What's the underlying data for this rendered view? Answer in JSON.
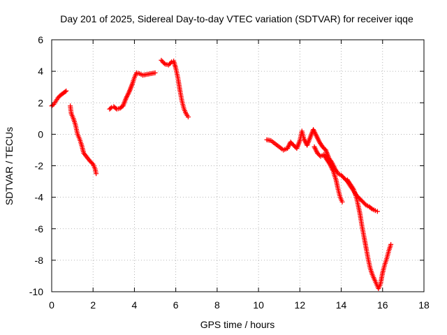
{
  "chart_data": {
    "type": "scatter",
    "title": "Day 201 of 2025, Sidereal Day-to-day VTEC variation (SDTVAR) for receiver iqqe",
    "xlabel": "GPS time / hours",
    "ylabel": "SDTVAR / TECUs",
    "xlim": [
      0,
      18
    ],
    "ylim": [
      -10,
      6
    ],
    "xticks": [
      "0",
      "2",
      "4",
      "6",
      "8",
      "10",
      "12",
      "14",
      "16",
      "18"
    ],
    "yticks": [
      "-10",
      "-8",
      "-6",
      "-4",
      "-2",
      "0",
      "2",
      "4",
      "6"
    ],
    "grid": true,
    "marker": "plus",
    "color": "#ff0000",
    "series": [
      {
        "name": "SDTVAR",
        "segments": [
          [
            [
              0.0,
              1.8
            ],
            [
              0.1,
              1.9
            ],
            [
              0.2,
              2.1
            ],
            [
              0.3,
              2.3
            ],
            [
              0.4,
              2.45
            ],
            [
              0.5,
              2.55
            ],
            [
              0.6,
              2.65
            ],
            [
              0.7,
              2.75
            ]
          ],
          [
            [
              0.9,
              1.8
            ],
            [
              0.95,
              1.3
            ],
            [
              1.05,
              1.0
            ],
            [
              1.15,
              0.6
            ],
            [
              1.25,
              0.0
            ],
            [
              1.35,
              -0.3
            ],
            [
              1.45,
              -0.7
            ],
            [
              1.55,
              -1.2
            ],
            [
              1.7,
              -1.45
            ],
            [
              1.85,
              -1.7
            ],
            [
              2.0,
              -1.9
            ],
            [
              2.1,
              -2.2
            ],
            [
              2.15,
              -2.5
            ]
          ],
          [
            [
              2.8,
              1.6
            ],
            [
              2.9,
              1.7
            ],
            [
              3.0,
              1.75
            ],
            [
              3.15,
              1.6
            ],
            [
              3.3,
              1.65
            ],
            [
              3.45,
              1.8
            ],
            [
              3.6,
              2.3
            ],
            [
              3.75,
              2.7
            ],
            [
              3.9,
              3.2
            ],
            [
              4.0,
              3.6
            ],
            [
              4.1,
              3.9
            ],
            [
              4.25,
              3.85
            ],
            [
              4.4,
              3.75
            ],
            [
              4.6,
              3.8
            ],
            [
              4.8,
              3.85
            ],
            [
              5.0,
              3.9
            ]
          ],
          [
            [
              5.3,
              4.7
            ],
            [
              5.4,
              4.55
            ],
            [
              5.5,
              4.45
            ],
            [
              5.65,
              4.4
            ],
            [
              5.8,
              4.6
            ],
            [
              5.9,
              4.65
            ],
            [
              6.0,
              4.2
            ],
            [
              6.1,
              3.6
            ],
            [
              6.2,
              2.8
            ],
            [
              6.3,
              2.1
            ],
            [
              6.4,
              1.6
            ],
            [
              6.5,
              1.3
            ],
            [
              6.6,
              1.1
            ]
          ],
          [
            [
              10.4,
              -0.35
            ],
            [
              10.6,
              -0.4
            ],
            [
              10.8,
              -0.6
            ],
            [
              11.0,
              -0.8
            ],
            [
              11.2,
              -1.0
            ],
            [
              11.4,
              -0.9
            ],
            [
              11.55,
              -0.5
            ],
            [
              11.7,
              -0.7
            ],
            [
              11.85,
              -0.9
            ],
            [
              12.0,
              -0.4
            ],
            [
              12.1,
              0.2
            ],
            [
              12.2,
              -0.3
            ],
            [
              12.35,
              -0.7
            ],
            [
              12.5,
              -0.2
            ],
            [
              12.65,
              0.3
            ],
            [
              12.8,
              -0.1
            ],
            [
              12.95,
              -0.5
            ],
            [
              13.1,
              -0.8
            ],
            [
              13.25,
              -1.0
            ],
            [
              13.4,
              -1.5
            ],
            [
              13.55,
              -1.8
            ],
            [
              13.7,
              -2.2
            ],
            [
              13.85,
              -2.5
            ],
            [
              14.0,
              -2.6
            ],
            [
              14.15,
              -2.8
            ],
            [
              14.3,
              -3.0
            ],
            [
              14.45,
              -3.3
            ],
            [
              14.6,
              -3.6
            ],
            [
              14.75,
              -3.9
            ],
            [
              14.9,
              -4.1
            ],
            [
              15.05,
              -4.3
            ],
            [
              15.2,
              -4.5
            ],
            [
              15.35,
              -4.6
            ],
            [
              15.5,
              -4.75
            ],
            [
              15.65,
              -4.85
            ],
            [
              15.75,
              -4.9
            ]
          ],
          [
            [
              12.7,
              -0.8
            ],
            [
              12.85,
              -1.2
            ],
            [
              13.0,
              -1.4
            ],
            [
              13.15,
              -1.3
            ],
            [
              13.3,
              -1.6
            ],
            [
              13.45,
              -1.9
            ],
            [
              13.6,
              -2.3
            ],
            [
              13.75,
              -2.9
            ],
            [
              13.85,
              -3.5
            ],
            [
              13.95,
              -4.0
            ],
            [
              14.05,
              -4.3
            ]
          ],
          [
            [
              14.3,
              -2.9
            ],
            [
              14.45,
              -3.2
            ],
            [
              14.6,
              -3.5
            ],
            [
              14.75,
              -4.1
            ],
            [
              14.9,
              -5.0
            ],
            [
              15.0,
              -5.8
            ],
            [
              15.1,
              -6.5
            ],
            [
              15.2,
              -7.2
            ],
            [
              15.3,
              -7.9
            ],
            [
              15.4,
              -8.5
            ],
            [
              15.5,
              -8.9
            ],
            [
              15.6,
              -9.2
            ],
            [
              15.7,
              -9.5
            ],
            [
              15.8,
              -9.8
            ],
            [
              15.9,
              -9.5
            ],
            [
              16.0,
              -8.8
            ],
            [
              16.1,
              -8.3
            ],
            [
              16.2,
              -7.9
            ],
            [
              16.3,
              -7.4
            ],
            [
              16.4,
              -7.0
            ]
          ]
        ]
      }
    ]
  }
}
